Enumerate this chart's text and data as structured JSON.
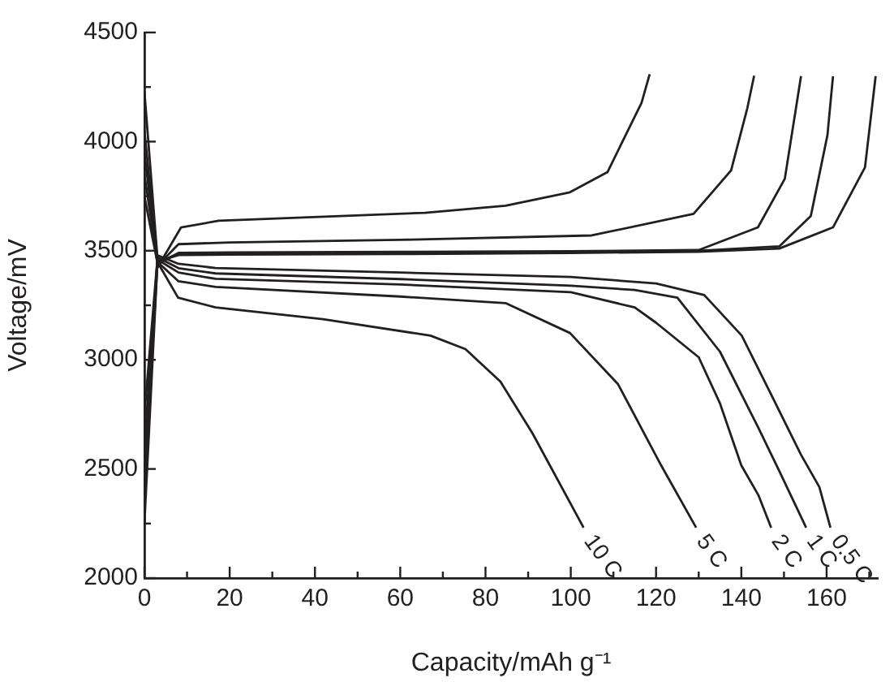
{
  "chart_data": {
    "type": "line",
    "xlabel": "Capacity/mAh g⁻¹",
    "ylabel": "Voltage/mV",
    "xlim": [
      0,
      172
    ],
    "ylim": [
      2000,
      4500
    ],
    "xticks": [
      0,
      {
        "value": 10,
        "label": null
      },
      20,
      {
        "value": 30,
        "label": null
      },
      40,
      {
        "value": 50,
        "label": null
      },
      60,
      {
        "value": 70,
        "label": null
      },
      80,
      {
        "value": 90,
        "label": null
      },
      100,
      {
        "value": 110,
        "label": null
      },
      120,
      {
        "value": 130,
        "label": null
      },
      140,
      {
        "value": 150,
        "label": null
      },
      160,
      {
        "value": 170,
        "label": null
      }
    ],
    "yticks": [
      2000,
      {
        "value": 2250,
        "label": null
      },
      2500,
      {
        "value": 2750,
        "label": null
      },
      3000,
      {
        "value": 3250,
        "label": null
      },
      3500,
      {
        "value": 3750,
        "label": null
      },
      4000,
      {
        "value": 4250,
        "label": null
      },
      4500
    ],
    "grid": false,
    "legend": false,
    "marker": "none",
    "line_style": "solid",
    "series": [
      {
        "name": "10 C",
        "color": "#231f20",
        "x": [
          0,
          3,
          7.9,
          16.7,
          41.9,
          67.1,
          75.3,
          83.5,
          91,
          103
        ],
        "values": [
          3750,
          3450,
          3285,
          3240,
          3186,
          3111,
          3049,
          2900,
          2664,
          2231
        ]
      },
      {
        "name": "5 C",
        "color": "#231f20",
        "x": [
          0,
          3,
          8,
          16.7,
          60,
          84.7,
          99.8,
          111.1,
          121.2,
          129.4
        ],
        "values": [
          3850,
          3450,
          3360,
          3334,
          3290,
          3260,
          3123,
          2888,
          2516,
          2231
        ]
      },
      {
        "name": "2 C",
        "color": "#231f20",
        "x": [
          0,
          3,
          8,
          16.7,
          60,
          100,
          115,
          120,
          130,
          135,
          140,
          144,
          147
        ],
        "values": [
          3950,
          3460,
          3400,
          3371,
          3345,
          3310,
          3240,
          3170,
          3012,
          2800,
          2516,
          2380,
          2231
        ]
      },
      {
        "name": "1 C",
        "color": "#231f20",
        "x": [
          0,
          3,
          8,
          16.7,
          60,
          100,
          115,
          125,
          135,
          143.9,
          148.9,
          155.2
        ],
        "values": [
          4050,
          3470,
          3420,
          3396,
          3370,
          3340,
          3320,
          3285,
          3037,
          2692,
          2491,
          2231
        ]
      },
      {
        "name": "0.5 C",
        "color": "#231f20",
        "x": [
          0,
          3,
          8,
          16.7,
          60,
          100,
          120,
          131.3,
          140.1,
          147.7,
          154,
          158.3,
          160.9
        ],
        "values": [
          4230,
          3480,
          3440,
          3421,
          3400,
          3380,
          3350,
          3297,
          3111,
          2813,
          2565,
          2417,
          2231
        ]
      },
      {
        "color": "#231f20",
        "x": [
          0,
          3,
          8.6,
          17.4,
          65.8,
          84.7,
          99.8,
          108.6,
          116.6,
          118.5
        ],
        "values": [
          2250,
          3420,
          3607,
          3637,
          3674,
          3706,
          3768,
          3860,
          4178,
          4309
        ]
      },
      {
        "color": "#231f20",
        "x": [
          0,
          3,
          8,
          20,
          60,
          104.9,
          128.8,
          137.6,
          141.4,
          143
        ],
        "values": [
          2400,
          3430,
          3530,
          3538,
          3550,
          3570,
          3669,
          3868,
          4153,
          4302
        ]
      },
      {
        "color": "#231f20",
        "x": [
          0,
          3,
          8,
          20,
          60,
          100,
          130,
          143.9,
          150.2,
          154
        ],
        "values": [
          2500,
          3440,
          3490,
          3492,
          3495,
          3498,
          3503,
          3607,
          3830,
          4300
        ]
      },
      {
        "color": "#231f20",
        "x": [
          0,
          3,
          8,
          20,
          60,
          100,
          130,
          148.9,
          156.3,
          160.2,
          161.5
        ],
        "values": [
          2600,
          3445,
          3485,
          3487,
          3490,
          3494,
          3500,
          3520,
          3659,
          4030,
          4300
        ]
      },
      {
        "color": "#231f20",
        "x": [
          0,
          3,
          8,
          20,
          60,
          100,
          130,
          148.9,
          161.5,
          169,
          171.5
        ],
        "values": [
          2750,
          3450,
          3480,
          3482,
          3485,
          3490,
          3495,
          3510,
          3607,
          3882,
          4300
        ]
      }
    ]
  }
}
